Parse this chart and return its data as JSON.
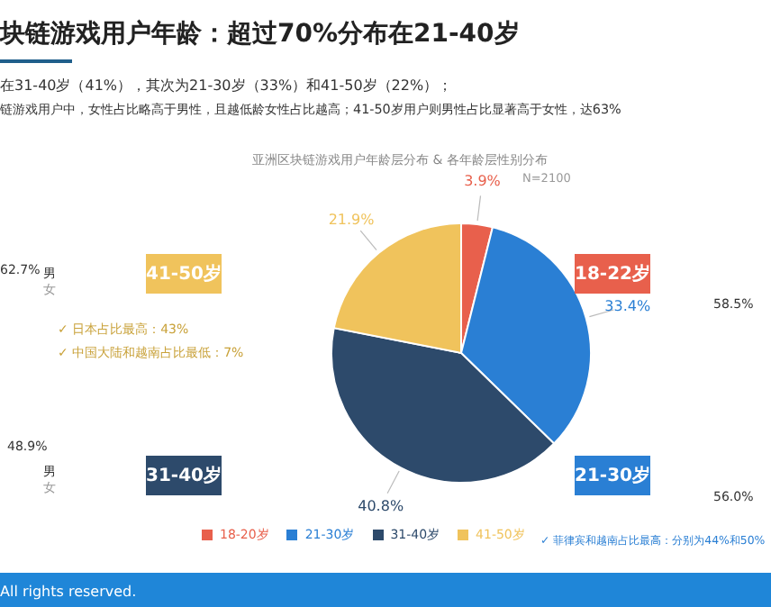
{
  "chart_data": {
    "type": "pie",
    "title": "块链游戏用户年龄：超过70%分布在21-40岁",
    "subtitle": "在31-40岁（41%），其次为21-30岁（33%）和41-50岁（22%）；",
    "categories": [
      "18-20岁",
      "21-30岁",
      "31-40岁",
      "41-50岁"
    ],
    "values": [
      3.9,
      33.4,
      40.8,
      21.9
    ],
    "colors": [
      "#e8604c",
      "#2a7fd4",
      "#2d4a6b",
      "#f0c35c"
    ],
    "value_labels": [
      "3.9%",
      "33.4%",
      "40.8%",
      "21.9%"
    ],
    "legend": "bottom",
    "annotations": [
      "链游戏用户中，女性占比略高于男性，且越低龄女性占比越高；41-50岁用户则男性占比显著高于女性，达63%",
      "亚洲区块链游戏用户年龄层分布 & 各年龄层性别分布",
      "N=2100",
      "41-50岁",
      "18-22岁",
      "31-40岁",
      "21-30岁",
      "62.7%",
      "58.5%",
      "48.9%",
      "56.0%",
      "男",
      "女",
      "男",
      "女",
      "✓ 日本占比最高：43%",
      "✓ 中国大陆和越南占比最低：7%",
      "✓ 菲律宾和越南占比最高：分别为44%和50%",
      "All rights reserved."
    ]
  }
}
